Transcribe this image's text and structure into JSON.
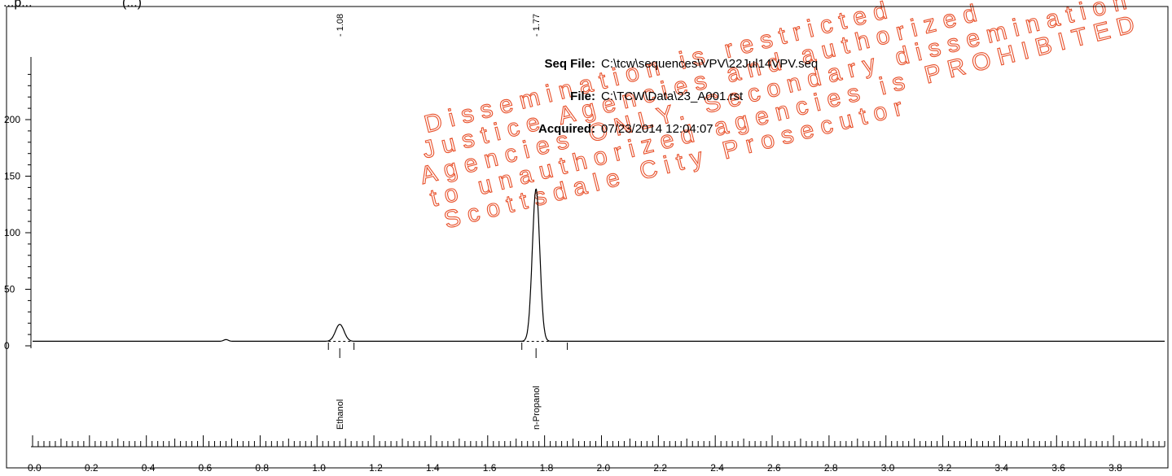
{
  "header": {
    "partial_title_left": "...p...",
    "partial_title_mid": "(...)"
  },
  "info": {
    "seq_label": "Seq File:",
    "seq_value": "C:\\tcw\\sequences\\VPV\\22Jul14VPV.seq",
    "file_label": "File:",
    "file_value": "C:\\TCW\\Data\\23_A001.rst",
    "acquired_label": "Acquired:",
    "acquired_value": "07/23/2014 12:04:07"
  },
  "watermark": {
    "lines": [
      "Dissemination is restricted",
      "Justice Agencies and authorized",
      "Agencies ONLY. Secondary dissemination",
      "to unauthorized agencies is PROHIBITED",
      "Scottsdale City Prosecutor"
    ],
    "color": "#e8502a"
  },
  "chart_data": {
    "type": "line",
    "title": "",
    "xlabel": "",
    "ylabel": "",
    "xlim": [
      0.0,
      3.98
    ],
    "ylim": [
      -5,
      250
    ],
    "y_ticks": [
      0,
      50,
      100,
      150,
      200
    ],
    "y_tick_labels": [
      "0",
      "50",
      "100",
      "150",
      "200"
    ],
    "x_ticks": [
      0.0,
      0.2,
      0.4,
      0.6,
      0.8,
      1.0,
      1.2,
      1.4,
      1.6,
      1.8,
      2.0,
      2.2,
      2.4,
      2.6,
      2.8,
      3.0,
      3.2,
      3.4,
      3.6,
      3.8
    ],
    "x_tick_labels": [
      "0.0",
      "0.2",
      "0.4",
      "0.6",
      "0.8",
      "1.0",
      "1.2",
      "1.4",
      "1.6",
      "1.8",
      "2.0",
      "2.2",
      "2.4",
      "2.6",
      "2.8",
      "3.0",
      "3.2",
      "3.4",
      "3.6",
      "3.8"
    ],
    "baseline": 4,
    "grid": false,
    "peaks": [
      {
        "rt": 1.08,
        "rt_label": "- 1.08",
        "height": 15,
        "width": 0.015,
        "name": "Ethanol",
        "window": [
          1.04,
          1.13
        ]
      },
      {
        "rt": 1.77,
        "rt_label": "- 1.77",
        "height": 135,
        "width": 0.013,
        "name": "n-Propanol",
        "window": [
          1.72,
          1.88
        ]
      }
    ],
    "minor_bumps": [
      {
        "rt": 0.68,
        "height": 1.5,
        "width": 0.008
      }
    ],
    "series_color": "#000000"
  }
}
